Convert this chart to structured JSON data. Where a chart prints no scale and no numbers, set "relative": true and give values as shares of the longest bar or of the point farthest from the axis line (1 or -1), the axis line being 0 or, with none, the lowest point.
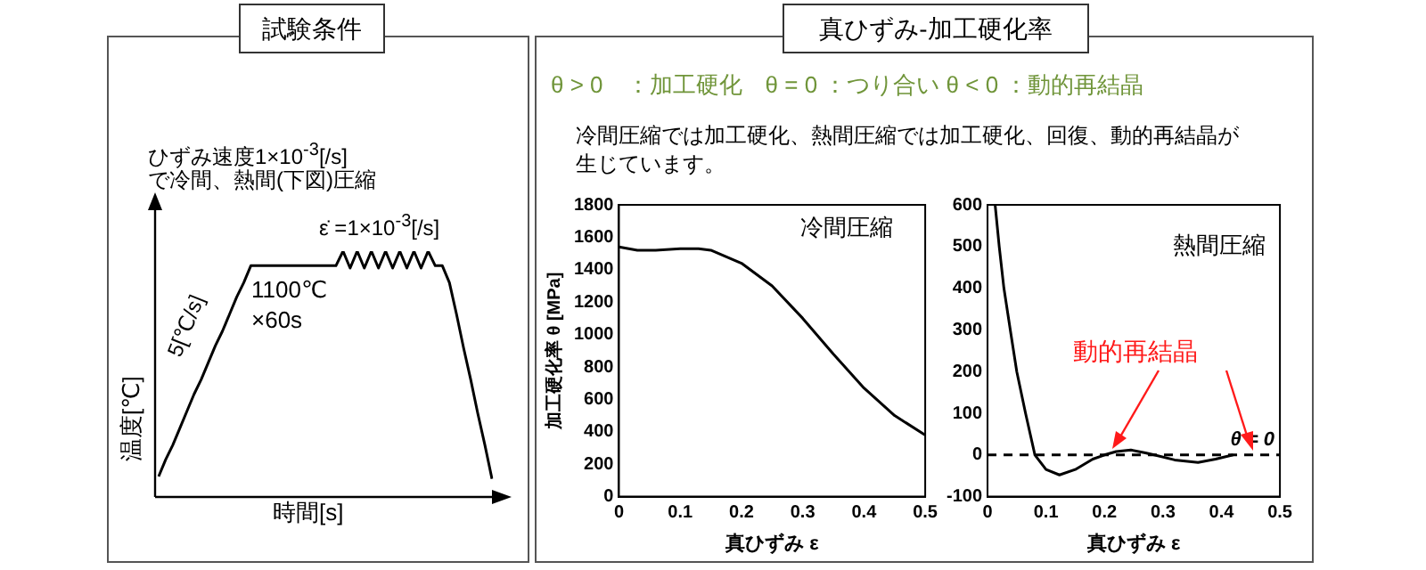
{
  "chart_data": [
    {
      "type": "line",
      "title": "試験条件",
      "xlabel": "時間[s]",
      "ylabel": "温度[℃]",
      "relative": true,
      "tick_labels": false,
      "marker": "none",
      "legend": false,
      "grid": false,
      "annotations": [
        "ひずみ速度1×10$^{-3}$[/s]",
        "で冷間、熱間(下図)圧縮",
        "ε̇ =1×10$^{-3}$[/s]",
        "5[℃/s]",
        "1100℃",
        "×60s"
      ],
      "categories": [
        null,
        null,
        null,
        null,
        null,
        null,
        null,
        null,
        null,
        null,
        null,
        null,
        null,
        null,
        null,
        null,
        null,
        null,
        null,
        null,
        null,
        null,
        null,
        null,
        null,
        null,
        null,
        null,
        null,
        null,
        null,
        null,
        null,
        null,
        null,
        null,
        null,
        null,
        null,
        null,
        null,
        null,
        null,
        null,
        null,
        null,
        null,
        null
      ],
      "series": [
        {
          "color": "#000000",
          "values": [
            0.07,
            0.14,
            0.2,
            0.27,
            0.34,
            0.41,
            0.47,
            0.54,
            0.61,
            0.67,
            0.74,
            0.81,
            0.87,
            0.94,
            0.94,
            0.94,
            0.94,
            0.94,
            0.94,
            0.94,
            0.94,
            0.94,
            0.94,
            0.94,
            0.94,
            0.94,
            1,
            0.93,
            1,
            0.93,
            1,
            0.93,
            1,
            0.93,
            1,
            0.93,
            1,
            0.93,
            1,
            0.94,
            0.94,
            0.87,
            0.74,
            0.6,
            0.47,
            0.33,
            0.2,
            0.06
          ]
        }
      ]
    },
    {
      "type": "other",
      "title": "真ひずみ-加工硬化率",
      "annotations": [
        "θ > 0　：加工硬化　θ = 0 ：つり合い θ < 0 ：動的再結晶",
        "冷間圧縮では加工硬化、熱間圧縮では加工硬化、回復、動的再結晶が生じています。"
      ]
    },
    {
      "type": "line",
      "xlabel": "真ひずみ ε",
      "ylabel": "加工硬化率 θ [MPa]",
      "annotations": [
        "冷間圧縮"
      ],
      "xlim": [
        0,
        0.5
      ],
      "xticks": [
        0,
        0.1,
        0.2,
        0.3,
        0.4,
        0.5
      ],
      "ylim": [
        0,
        1800
      ],
      "yticks": [
        0,
        200,
        400,
        600,
        800,
        1000,
        1200,
        1400,
        1600,
        1800
      ],
      "marker": "none",
      "legend": false,
      "grid": false,
      "series": [
        {
          "color": "#000000",
          "x": [
            0,
            0.03,
            0.06,
            0.1,
            0.13,
            0.15,
            0.2,
            0.25,
            0.3,
            0.35,
            0.4,
            0.45,
            0.5
          ],
          "values": [
            1540,
            1520,
            1520,
            1530,
            1530,
            1520,
            1440,
            1300,
            1100,
            880,
            670,
            500,
            380
          ]
        }
      ]
    },
    {
      "type": "line",
      "xlabel": "真ひずみ ε",
      "annotations": [
        "熱間圧縮",
        "動的再結晶"
      ],
      "xlim": [
        0,
        0.5
      ],
      "xticks": [
        0,
        0.1,
        0.2,
        0.3,
        0.4,
        0.5
      ],
      "ylim": [
        -100,
        600
      ],
      "yticks": [
        -100,
        0,
        100,
        200,
        300,
        400,
        500,
        600
      ],
      "marker": "none",
      "legend": false,
      "grid": false,
      "ref_lines": [
        {
          "axis": "y",
          "value": 0,
          "label": "θ = 0",
          "line_style": "dashed",
          "color": "#000000"
        }
      ],
      "series": [
        {
          "color": "#000000",
          "x": [
            0.013,
            0.02,
            0.028,
            0.04,
            0.05,
            0.065,
            0.081,
            0.1,
            0.123,
            0.15,
            0.18,
            0.2,
            0.22,
            0.245,
            0.27,
            0.285,
            0.32,
            0.36,
            0.39,
            0.42
          ],
          "values": [
            600,
            500,
            400,
            290,
            200,
            100,
            0,
            -35,
            -48,
            -35,
            -10,
            0,
            8,
            12,
            5,
            0,
            -12,
            -18,
            -10,
            0
          ]
        }
      ]
    }
  ]
}
